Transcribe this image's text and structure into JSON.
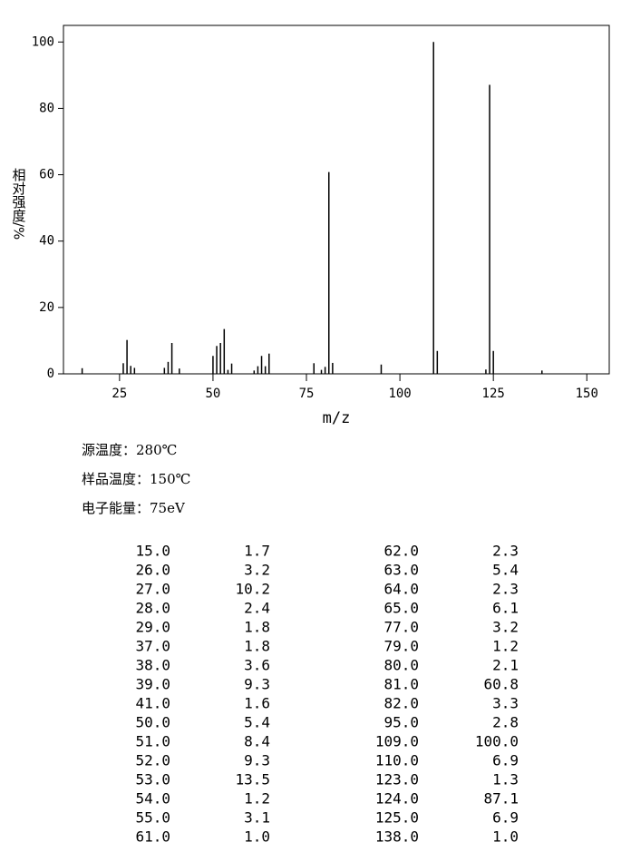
{
  "chart_data": {
    "type": "stem",
    "x_label": "m/z",
    "y_label": "相对强度/%",
    "x": [
      15,
      26,
      27,
      28,
      29,
      37,
      38,
      39,
      41,
      50,
      51,
      52,
      53,
      54,
      55,
      61,
      62,
      63,
      64,
      65,
      77,
      79,
      80,
      81,
      82,
      95,
      109,
      110,
      123,
      124,
      125,
      138
    ],
    "values": [
      1.7,
      3.2,
      10.2,
      2.4,
      1.8,
      1.8,
      3.6,
      9.3,
      1.6,
      5.4,
      8.4,
      9.3,
      13.5,
      1.2,
      3.1,
      1.0,
      2.3,
      5.4,
      2.3,
      6.1,
      3.2,
      1.2,
      2.1,
      60.8,
      3.3,
      2.8,
      100.0,
      6.9,
      1.3,
      87.1,
      6.9,
      1.0
    ],
    "color": "#000000",
    "xlim": [
      10,
      156
    ],
    "xticks": [
      25,
      50,
      75,
      100,
      125,
      150
    ],
    "ylim": [
      0,
      105
    ],
    "yticks": [
      0,
      20,
      40,
      60,
      80,
      100
    ]
  },
  "info": [
    "源温度：280℃",
    "样品温度：150℃",
    "电子能量：75eV"
  ],
  "table": {
    "rows": [
      [
        "15.0",
        "1.7",
        "62.0",
        "2.3"
      ],
      [
        "26.0",
        "3.2",
        "63.0",
        "5.4"
      ],
      [
        "27.0",
        "10.2",
        "64.0",
        "2.3"
      ],
      [
        "28.0",
        "2.4",
        "65.0",
        "6.1"
      ],
      [
        "29.0",
        "1.8",
        "77.0",
        "3.2"
      ],
      [
        "37.0",
        "1.8",
        "79.0",
        "1.2"
      ],
      [
        "38.0",
        "3.6",
        "80.0",
        "2.1"
      ],
      [
        "39.0",
        "9.3",
        "81.0",
        "60.8"
      ],
      [
        "41.0",
        "1.6",
        "82.0",
        "3.3"
      ],
      [
        "50.0",
        "5.4",
        "95.0",
        "2.8"
      ],
      [
        "51.0",
        "8.4",
        "109.0",
        "100.0"
      ],
      [
        "52.0",
        "9.3",
        "110.0",
        "6.9"
      ],
      [
        "53.0",
        "13.5",
        "123.0",
        "1.3"
      ],
      [
        "54.0",
        "1.2",
        "124.0",
        "87.1"
      ],
      [
        "55.0",
        "3.1",
        "125.0",
        "6.9"
      ],
      [
        "61.0",
        "1.0",
        "138.0",
        "1.0"
      ]
    ]
  }
}
